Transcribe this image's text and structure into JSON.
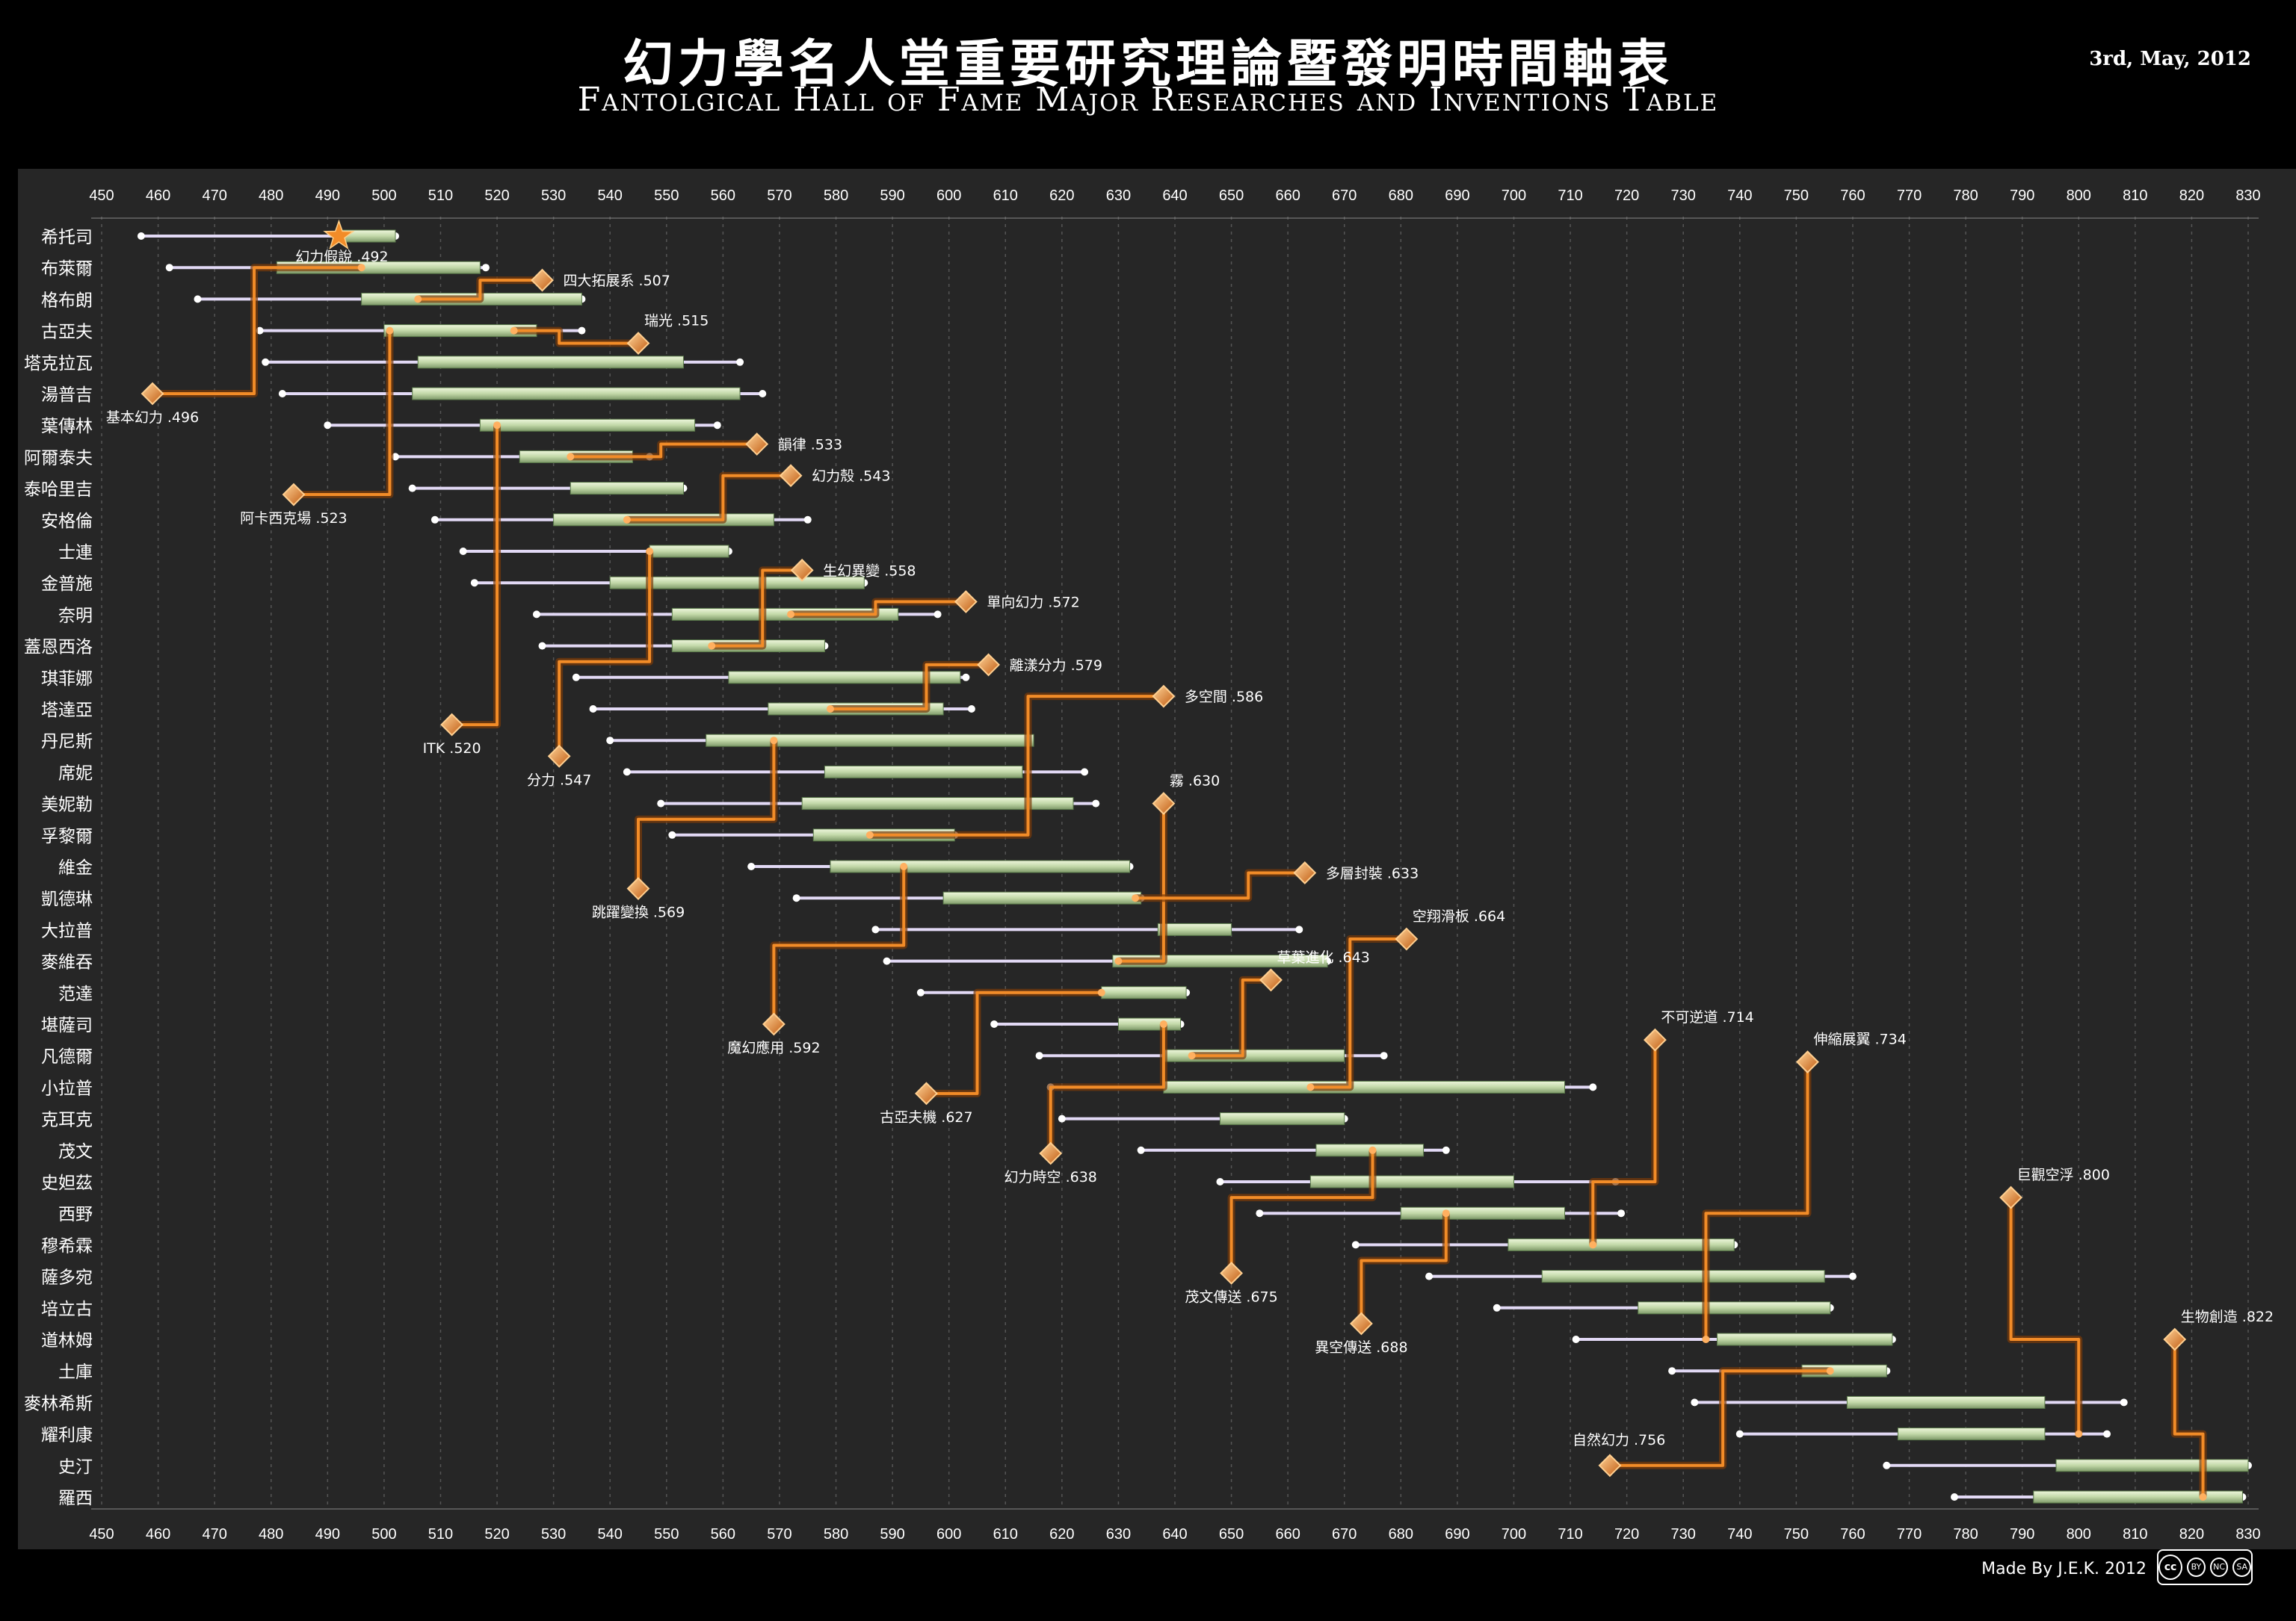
{
  "title_zh": "幻力學名人堂重要研究理論暨發明時間軸表",
  "title_en": "Fantolgical Hall of Fame Major Researches and Inventions Table",
  "date": "3rd, May, 2012",
  "credit": "Made By J.E.K. 2012",
  "license": [
    "cc",
    "BY",
    "NC",
    "SA"
  ],
  "chart_data": {
    "type": "timeline",
    "xlim": [
      450,
      830
    ],
    "x_ticks": [
      450,
      460,
      470,
      480,
      490,
      500,
      510,
      520,
      530,
      540,
      550,
      560,
      570,
      580,
      590,
      600,
      610,
      620,
      630,
      640,
      650,
      660,
      670,
      680,
      690,
      700,
      710,
      720,
      730,
      740,
      750,
      760,
      770,
      780,
      790,
      800,
      810,
      820,
      830
    ],
    "colors": {
      "life": "#e2d9f5",
      "career": "#c2d8a8",
      "link": "#f28c28",
      "bg": "#262626"
    },
    "people": [
      {
        "name": "希托司",
        "life": [
          457,
          502
        ],
        "career": [
          492,
          502
        ]
      },
      {
        "name": "布萊爾",
        "life": [
          462,
          518
        ],
        "career": [
          481,
          517
        ]
      },
      {
        "name": "格布朗",
        "life": [
          467,
          535
        ],
        "career": [
          496,
          535
        ]
      },
      {
        "name": "古亞夫",
        "life": [
          478,
          535
        ],
        "career": [
          500,
          527
        ]
      },
      {
        "name": "塔克拉瓦",
        "life": [
          479,
          563
        ],
        "career": [
          506,
          553
        ]
      },
      {
        "name": "湯普吉",
        "life": [
          482,
          567
        ],
        "career": [
          505,
          563
        ]
      },
      {
        "name": "葉傳林",
        "life": [
          490,
          559
        ],
        "career": [
          517,
          555
        ]
      },
      {
        "name": "阿爾泰夫",
        "life": [
          502,
          547
        ],
        "career": [
          524,
          544
        ]
      },
      {
        "name": "泰哈里吉",
        "life": [
          505,
          553
        ],
        "career": [
          533,
          553
        ]
      },
      {
        "name": "安格倫",
        "life": [
          509,
          575
        ],
        "career": [
          530,
          569
        ]
      },
      {
        "name": "士連",
        "life": [
          514,
          561
        ],
        "career": [
          547,
          561
        ]
      },
      {
        "name": "金普施",
        "life": [
          516,
          585
        ],
        "career": [
          540,
          585
        ]
      },
      {
        "name": "奈明",
        "life": [
          527,
          598
        ],
        "career": [
          551,
          591
        ]
      },
      {
        "name": "蓋恩西洛",
        "life": [
          528,
          578
        ],
        "career": [
          551,
          578
        ]
      },
      {
        "name": "琪菲娜",
        "life": [
          534,
          603
        ],
        "career": [
          561,
          602
        ]
      },
      {
        "name": "塔達亞",
        "life": [
          537,
          604
        ],
        "career": [
          568,
          599
        ]
      },
      {
        "name": "丹尼斯",
        "life": [
          540,
          614
        ],
        "career": [
          557,
          615
        ]
      },
      {
        "name": "席妮",
        "life": [
          543,
          624
        ],
        "career": [
          578,
          613
        ]
      },
      {
        "name": "美妮勒",
        "life": [
          549,
          626
        ],
        "career": [
          574,
          622
        ]
      },
      {
        "name": "孚黎爾",
        "life": [
          551,
          601
        ],
        "career": [
          576,
          601
        ]
      },
      {
        "name": "維金",
        "life": [
          565,
          632
        ],
        "career": [
          579,
          632
        ]
      },
      {
        "name": "凱德琳",
        "life": [
          573,
          634
        ],
        "career": [
          599,
          634
        ]
      },
      {
        "name": "大拉普",
        "life": [
          587,
          662
        ],
        "career": [
          637,
          650
        ]
      },
      {
        "name": "麥維吞",
        "life": [
          589,
          667
        ],
        "career": [
          629,
          667
        ]
      },
      {
        "name": "范達",
        "life": [
          595,
          642
        ],
        "career": [
          627,
          642
        ]
      },
      {
        "name": "堪薩司",
        "life": [
          608,
          641
        ],
        "career": [
          630,
          641
        ]
      },
      {
        "name": "凡德爾",
        "life": [
          616,
          677
        ],
        "career": [
          638,
          670
        ]
      },
      {
        "name": "小拉普",
        "life": [
          618,
          714
        ],
        "career": [
          638,
          709
        ]
      },
      {
        "name": "克耳克",
        "life": [
          620,
          670
        ],
        "career": [
          648,
          670
        ]
      },
      {
        "name": "茂文",
        "life": [
          634,
          688
        ],
        "career": [
          665,
          684
        ]
      },
      {
        "name": "史妲茲",
        "life": [
          648,
          718
        ],
        "career": [
          664,
          700
        ]
      },
      {
        "name": "西野",
        "life": [
          655,
          719
        ],
        "career": [
          680,
          709
        ]
      },
      {
        "name": "穆希霖",
        "life": [
          672,
          739
        ],
        "career": [
          699,
          739
        ]
      },
      {
        "name": "薩多宛",
        "life": [
          685,
          760
        ],
        "career": [
          705,
          755
        ]
      },
      {
        "name": "培立古",
        "life": [
          697,
          756
        ],
        "career": [
          722,
          756
        ]
      },
      {
        "name": "道林姆",
        "life": [
          711,
          767
        ],
        "career": [
          736,
          767
        ]
      },
      {
        "name": "土庫",
        "life": [
          728,
          766
        ],
        "career": [
          751,
          766
        ]
      },
      {
        "name": "麥林希斯",
        "life": [
          732,
          808
        ],
        "career": [
          759,
          794
        ]
      },
      {
        "name": "耀利康",
        "life": [
          740,
          805
        ],
        "career": [
          768,
          794
        ]
      },
      {
        "name": "史汀",
        "life": [
          766,
          830
        ],
        "career": [
          796,
          830
        ]
      },
      {
        "name": "羅西",
        "life": [
          778,
          829
        ],
        "career": [
          792,
          829
        ]
      }
    ],
    "inventions": [
      {
        "label": "幻力假說 .492",
        "year": 492,
        "row": 0,
        "kind": "origin",
        "label_pos": "below",
        "path": []
      },
      {
        "label": "基本幻力 .496",
        "year": 496,
        "row": 5,
        "kind": "diamond",
        "label_pos": "below",
        "path": [
          [
            496,
            1
          ],
          [
            477,
            1
          ],
          [
            477,
            5
          ],
          [
            459,
            5
          ]
        ]
      },
      {
        "label": "四大拓展系 .507",
        "year": 507,
        "row": 1.4,
        "kind": "diamond",
        "label_pos": "right",
        "path": [
          [
            506,
            2
          ],
          [
            517,
            2
          ],
          [
            517,
            1.4
          ],
          [
            528,
            1.4
          ]
        ]
      },
      {
        "label": "瑞光 .515",
        "year": 515,
        "row": 3.4,
        "kind": "diamond",
        "label_pos": "above",
        "path": [
          [
            523,
            3
          ],
          [
            531,
            3
          ],
          [
            531,
            3.4
          ],
          [
            545,
            3.4
          ]
        ]
      },
      {
        "label": "阿卡西克場 .523",
        "year": 523,
        "row": 8.2,
        "kind": "diamond",
        "label_pos": "below",
        "path": [
          [
            501,
            3
          ],
          [
            501,
            8.2
          ],
          [
            484,
            8.2
          ]
        ]
      },
      {
        "label": "ITK .520",
        "year": 520,
        "row": 15.5,
        "kind": "diamond",
        "label_pos": "below",
        "path": [
          [
            520,
            6
          ],
          [
            520,
            15.5
          ],
          [
            512,
            15.5
          ]
        ]
      },
      {
        "label": "韻律 .533",
        "year": 533,
        "row": 6.6,
        "kind": "diamond",
        "label_pos": "right",
        "path": [
          [
            533,
            7
          ],
          [
            549,
            7
          ],
          [
            549,
            6.6
          ],
          [
            566,
            6.6
          ]
        ]
      },
      {
        "label": "幻力殼 .543",
        "year": 543,
        "row": 7.6,
        "kind": "diamond",
        "label_pos": "right",
        "path": [
          [
            543,
            9
          ],
          [
            560,
            9
          ],
          [
            560,
            7.6
          ],
          [
            572,
            7.6
          ]
        ]
      },
      {
        "label": "生幻異變 .558",
        "year": 558,
        "row": 10.6,
        "kind": "diamond",
        "label_pos": "right",
        "path": [
          [
            558,
            13
          ],
          [
            567,
            13
          ],
          [
            567,
            10.6
          ],
          [
            574,
            10.6
          ]
        ]
      },
      {
        "label": "單向幻力 .572",
        "year": 572,
        "row": 11.6,
        "kind": "diamond",
        "label_pos": "right",
        "path": [
          [
            572,
            12
          ],
          [
            587,
            12
          ],
          [
            587,
            11.6
          ],
          [
            603,
            11.6
          ]
        ]
      },
      {
        "label": "分力 .547",
        "year": 547,
        "row": 16.5,
        "kind": "diamond",
        "label_pos": "below",
        "path": [
          [
            547,
            10
          ],
          [
            547,
            13.5
          ],
          [
            531,
            13.5
          ],
          [
            531,
            16.5
          ]
        ]
      },
      {
        "label": "離漾分力 .579",
        "year": 579,
        "row": 13.6,
        "kind": "diamond",
        "label_pos": "right",
        "path": [
          [
            579,
            15
          ],
          [
            596,
            15
          ],
          [
            596,
            13.6
          ],
          [
            607,
            13.6
          ]
        ]
      },
      {
        "label": "多空間 .586",
        "year": 586,
        "row": 14.6,
        "kind": "diamond",
        "label_pos": "right",
        "path": [
          [
            586,
            19
          ],
          [
            614,
            19
          ],
          [
            614,
            14.6
          ],
          [
            638,
            14.6
          ]
        ]
      },
      {
        "label": "跳躍變換 .569",
        "year": 569,
        "row": 20.7,
        "kind": "diamond",
        "label_pos": "below",
        "path": [
          [
            569,
            16
          ],
          [
            569,
            18.5
          ],
          [
            545,
            18.5
          ],
          [
            545,
            20.7
          ]
        ]
      },
      {
        "label": "霧 .630",
        "year": 630,
        "row": 18.0,
        "kind": "diamond",
        "label_pos": "above",
        "path": [
          [
            630,
            23
          ],
          [
            638,
            23
          ],
          [
            638,
            18.0
          ]
        ]
      },
      {
        "label": "多層封裝 .633",
        "year": 633,
        "row": 20.2,
        "kind": "diamond",
        "label_pos": "right",
        "path": [
          [
            633,
            21
          ],
          [
            653,
            21
          ],
          [
            653,
            20.2
          ],
          [
            663,
            20.2
          ]
        ]
      },
      {
        "label": "魔幻應用 .592",
        "year": 592,
        "row": 25.0,
        "kind": "diamond",
        "label_pos": "below",
        "path": [
          [
            592,
            20
          ],
          [
            592,
            22.5
          ],
          [
            569,
            22.5
          ],
          [
            569,
            25.0
          ]
        ]
      },
      {
        "label": "空翔滑板 .664",
        "year": 664,
        "row": 22.3,
        "kind": "diamond",
        "label_pos": "above",
        "path": [
          [
            664,
            27
          ],
          [
            671,
            27
          ],
          [
            671,
            22.3
          ],
          [
            681,
            22.3
          ]
        ]
      },
      {
        "label": "草葉進化 .643",
        "year": 643,
        "row": 23.6,
        "kind": "diamond",
        "label_pos": "above",
        "path": [
          [
            643,
            26
          ],
          [
            652,
            26
          ],
          [
            652,
            23.6
          ],
          [
            657,
            23.6
          ]
        ]
      },
      {
        "label": "古亞夫機 .627",
        "year": 627,
        "row": 27.2,
        "kind": "diamond",
        "label_pos": "below",
        "path": [
          [
            627,
            24
          ],
          [
            605,
            24
          ],
          [
            605,
            27.2
          ],
          [
            596,
            27.2
          ]
        ]
      },
      {
        "label": "幻力時空 .638",
        "year": 638,
        "row": 29.1,
        "kind": "diamond",
        "label_pos": "below",
        "path": [
          [
            638,
            25
          ],
          [
            638,
            27
          ],
          [
            618,
            27
          ],
          [
            618,
            29.1
          ]
        ]
      },
      {
        "label": "茂文傳送 .675",
        "year": 675,
        "row": 32.9,
        "kind": "diamond",
        "label_pos": "below",
        "path": [
          [
            675,
            29
          ],
          [
            675,
            30.5
          ],
          [
            650,
            30.5
          ],
          [
            650,
            32.9
          ]
        ]
      },
      {
        "label": "異空傳送 .688",
        "year": 688,
        "row": 34.5,
        "kind": "diamond",
        "label_pos": "below",
        "path": [
          [
            688,
            31
          ],
          [
            688,
            32.5
          ],
          [
            673,
            32.5
          ],
          [
            673,
            34.5
          ]
        ]
      },
      {
        "label": "不可逆道 .714",
        "year": 714,
        "row": 25.5,
        "kind": "diamond",
        "label_pos": "above",
        "path": [
          [
            714,
            32
          ],
          [
            714,
            30
          ],
          [
            725,
            30
          ],
          [
            725,
            25.5
          ]
        ]
      },
      {
        "label": "伸縮展翼 .734",
        "year": 734,
        "row": 26.2,
        "kind": "diamond",
        "label_pos": "above",
        "path": [
          [
            734,
            35
          ],
          [
            734,
            31
          ],
          [
            752,
            31
          ],
          [
            752,
            26.2
          ]
        ]
      },
      {
        "label": "巨觀空浮 .800",
        "year": 800,
        "row": 30.5,
        "kind": "diamond",
        "label_pos": "above",
        "path": [
          [
            800,
            38
          ],
          [
            800,
            35
          ],
          [
            788,
            35
          ],
          [
            788,
            30.5
          ]
        ]
      },
      {
        "label": "生物創造 .822",
        "year": 822,
        "row": 35.0,
        "kind": "diamond",
        "label_pos": "above",
        "path": [
          [
            822,
            40
          ],
          [
            822,
            38
          ],
          [
            817,
            38
          ],
          [
            817,
            35.0
          ]
        ]
      },
      {
        "label": "自然幻力 .756",
        "year": 756,
        "row": 39.0,
        "kind": "diamond",
        "label_pos": "left",
        "path": [
          [
            756,
            36
          ],
          [
            737,
            36
          ],
          [
            737,
            39.0
          ],
          [
            717,
            39.0
          ]
        ]
      }
    ]
  }
}
